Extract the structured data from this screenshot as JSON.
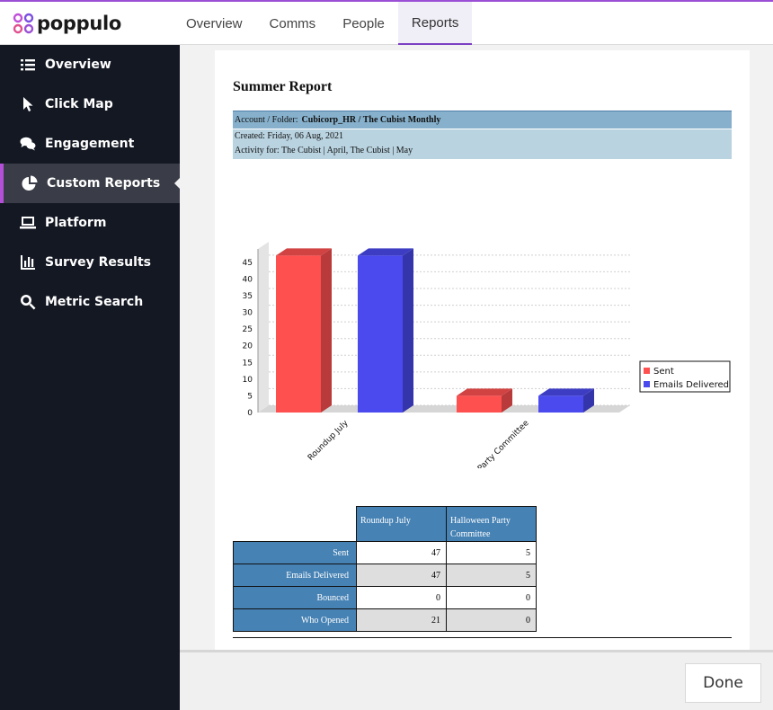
{
  "brand": {
    "name": "poppulo"
  },
  "tabs": [
    {
      "label": "Overview"
    },
    {
      "label": "Comms"
    },
    {
      "label": "People"
    },
    {
      "label": "Reports"
    }
  ],
  "sidebar": {
    "items": [
      {
        "label": "Overview",
        "icon": "list-icon"
      },
      {
        "label": "Click Map",
        "icon": "cursor-icon"
      },
      {
        "label": "Engagement",
        "icon": "chat-icon"
      },
      {
        "label": "Custom Reports",
        "icon": "pie-chart-icon"
      },
      {
        "label": "Platform",
        "icon": "laptop-icon"
      },
      {
        "label": "Survey Results",
        "icon": "bar-chart-icon"
      },
      {
        "label": "Metric Search",
        "icon": "search-icon"
      }
    ]
  },
  "report": {
    "title": "Summer Report",
    "account_label": "Account / Folder:",
    "account_value": "Cubicorp_HR / The Cubist Monthly",
    "created": "Created: Friday, 06 Aug, 2021",
    "activity": "Activity for: The Cubist | April, The Cubist | May"
  },
  "chart_data": {
    "type": "bar",
    "categories": [
      "Roundup July",
      "Halloween Party Committee"
    ],
    "series": [
      {
        "name": "Sent",
        "values": [
          47,
          5
        ],
        "color": "#ff5050"
      },
      {
        "name": "Emails Delivered",
        "values": [
          47,
          5
        ],
        "color": "#4a4aee"
      }
    ],
    "yticks": [
      0,
      5,
      10,
      15,
      20,
      25,
      30,
      35,
      40,
      45
    ],
    "ylim": [
      0,
      49
    ],
    "grid": true,
    "legend": "right"
  },
  "table": {
    "columns": [
      "Roundup July",
      "Halloween Party Committee"
    ],
    "rows": [
      {
        "label": "Sent",
        "values": [
          "47",
          "5"
        ]
      },
      {
        "label": "Emails Delivered",
        "values": [
          "47",
          "5"
        ]
      },
      {
        "label": "Bounced",
        "values": [
          "0",
          "0"
        ]
      },
      {
        "label": "Who Opened",
        "values": [
          "21",
          "0"
        ]
      }
    ]
  },
  "footer": {
    "done_label": "Done"
  }
}
